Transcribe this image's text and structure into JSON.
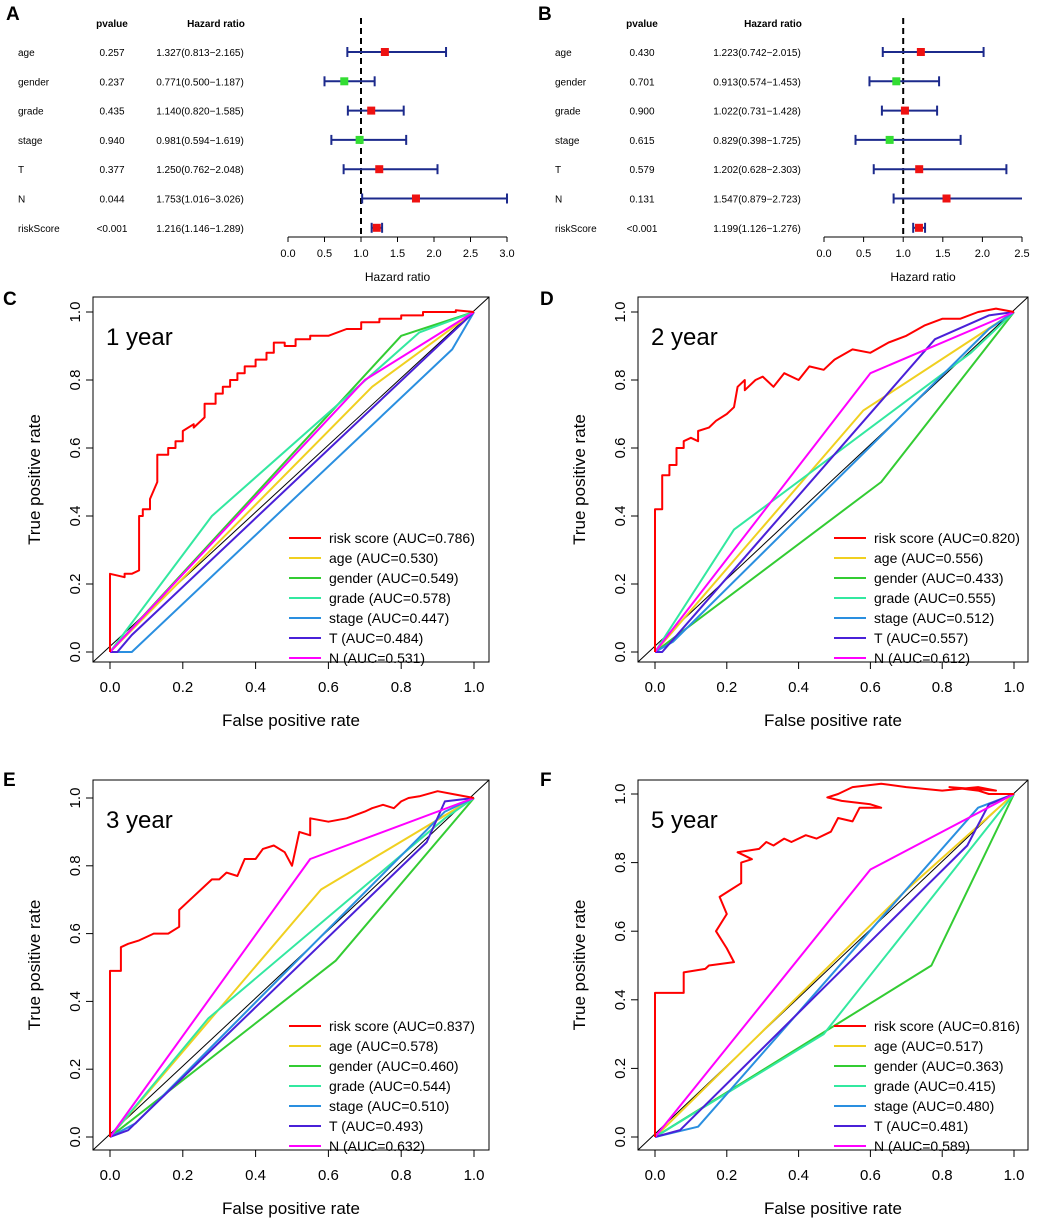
{
  "chart_data": [
    {
      "type": "forest",
      "panel": "A",
      "headers": {
        "pvalue": "pvalue",
        "hr": "Hazard ratio"
      },
      "xlabel": "Hazard ratio",
      "xlim": [
        0,
        3
      ],
      "xticks": [
        "0.0",
        "0.5",
        "1.0",
        "1.5",
        "2.0",
        "2.5",
        "3.0"
      ],
      "reference": 1,
      "rows": [
        {
          "name": "age",
          "pvalue": "0.257",
          "hr_text": "1.327(0.813−2.165)",
          "hr": 1.327,
          "lo": 0.813,
          "hi": 2.165
        },
        {
          "name": "gender",
          "pvalue": "0.237",
          "hr_text": "0.771(0.500−1.187)",
          "hr": 0.771,
          "lo": 0.5,
          "hi": 1.187
        },
        {
          "name": "grade",
          "pvalue": "0.435",
          "hr_text": "1.140(0.820−1.585)",
          "hr": 1.14,
          "lo": 0.82,
          "hi": 1.585
        },
        {
          "name": "stage",
          "pvalue": "0.940",
          "hr_text": "0.981(0.594−1.619)",
          "hr": 0.981,
          "lo": 0.594,
          "hi": 1.619
        },
        {
          "name": "T",
          "pvalue": "0.377",
          "hr_text": "1.250(0.762−2.048)",
          "hr": 1.25,
          "lo": 0.762,
          "hi": 2.048
        },
        {
          "name": "N",
          "pvalue": "0.044",
          "hr_text": "1.753(1.016−3.026)",
          "hr": 1.753,
          "lo": 1.016,
          "hi": 3.026
        },
        {
          "name": "riskScore",
          "pvalue": "<0.001",
          "hr_text": "1.216(1.146−1.289)",
          "hr": 1.216,
          "lo": 1.146,
          "hi": 1.289
        }
      ]
    },
    {
      "type": "forest",
      "panel": "B",
      "headers": {
        "pvalue": "pvalue",
        "hr": "Hazard ratio"
      },
      "xlabel": "Hazard ratio",
      "xlim": [
        0,
        2.5
      ],
      "xticks": [
        "0.0",
        "0.5",
        "1.0",
        "1.5",
        "2.0",
        "2.5"
      ],
      "reference": 1,
      "rows": [
        {
          "name": "age",
          "pvalue": "0.430",
          "hr_text": "1.223(0.742−2.015)",
          "hr": 1.223,
          "lo": 0.742,
          "hi": 2.015
        },
        {
          "name": "gender",
          "pvalue": "0.701",
          "hr_text": "0.913(0.574−1.453)",
          "hr": 0.913,
          "lo": 0.574,
          "hi": 1.453
        },
        {
          "name": "grade",
          "pvalue": "0.900",
          "hr_text": "1.022(0.731−1.428)",
          "hr": 1.022,
          "lo": 0.731,
          "hi": 1.428
        },
        {
          "name": "stage",
          "pvalue": "0.615",
          "hr_text": "0.829(0.398−1.725)",
          "hr": 0.829,
          "lo": 0.398,
          "hi": 1.725
        },
        {
          "name": "T",
          "pvalue": "0.579",
          "hr_text": "1.202(0.628−2.303)",
          "hr": 1.202,
          "lo": 0.628,
          "hi": 2.303
        },
        {
          "name": "N",
          "pvalue": "0.131",
          "hr_text": "1.547(0.879−2.723)",
          "hr": 1.547,
          "lo": 0.879,
          "hi": 2.723
        },
        {
          "name": "riskScore",
          "pvalue": "<0.001",
          "hr_text": "1.199(1.126−1.276)",
          "hr": 1.199,
          "lo": 1.126,
          "hi": 1.276
        }
      ]
    },
    {
      "type": "line",
      "panel": "C",
      "title": "1 year",
      "xlabel": "False positive rate",
      "ylabel": "True positive rate",
      "xlim": [
        0,
        1
      ],
      "ylim": [
        0,
        1
      ],
      "ticks": [
        "0.0",
        "0.2",
        "0.4",
        "0.6",
        "0.8",
        "1.0"
      ],
      "series": [
        {
          "name": "risk score (AUC=0.786)",
          "color": "#ff0000",
          "x": [
            0,
            0,
            0.04,
            0.04,
            0.06,
            0.08,
            0.08,
            0.09,
            0.09,
            0.11,
            0.11,
            0.13,
            0.13,
            0.16,
            0.16,
            0.18,
            0.18,
            0.2,
            0.2,
            0.23,
            0.23,
            0.26,
            0.26,
            0.29,
            0.29,
            0.31,
            0.31,
            0.33,
            0.33,
            0.35,
            0.35,
            0.37,
            0.37,
            0.4,
            0.4,
            0.43,
            0.43,
            0.45,
            0.45,
            0.48,
            0.48,
            0.51,
            0.51,
            0.55,
            0.55,
            0.6,
            0.65,
            0.69,
            0.69,
            0.74,
            0.74,
            0.8,
            0.8,
            0.86,
            0.86,
            0.95,
            0.95,
            1
          ],
          "y": [
            0,
            0.23,
            0.22,
            0.23,
            0.23,
            0.24,
            0.4,
            0.4,
            0.42,
            0.42,
            0.45,
            0.5,
            0.58,
            0.58,
            0.6,
            0.6,
            0.62,
            0.62,
            0.65,
            0.67,
            0.66,
            0.69,
            0.73,
            0.73,
            0.76,
            0.76,
            0.78,
            0.78,
            0.8,
            0.8,
            0.82,
            0.82,
            0.84,
            0.84,
            0.86,
            0.86,
            0.88,
            0.88,
            0.91,
            0.91,
            0.9,
            0.9,
            0.92,
            0.92,
            0.93,
            0.93,
            0.95,
            0.95,
            0.97,
            0.97,
            0.98,
            0.98,
            0.99,
            0.99,
            1,
            1,
            1.005,
            1
          ]
        },
        {
          "name": "age (AUC=0.530)",
          "color": "#f0d020",
          "x": [
            0,
            0.72,
            1
          ],
          "y": [
            0,
            0.78,
            1
          ]
        },
        {
          "name": "gender (AUC=0.549)",
          "color": "#33cc33",
          "x": [
            0,
            0.8,
            1
          ],
          "y": [
            0,
            0.93,
            1
          ]
        },
        {
          "name": "grade (AUC=0.578)",
          "color": "#33e8a0",
          "x": [
            0,
            0.28,
            0.85,
            1
          ],
          "y": [
            0,
            0.4,
            0.94,
            1
          ]
        },
        {
          "name": "stage (AUC=0.447)",
          "color": "#2a8fe0",
          "x": [
            0,
            0.06,
            0.94,
            1
          ],
          "y": [
            0,
            0,
            0.89,
            1
          ]
        },
        {
          "name": "T (AUC=0.484)",
          "color": "#4a20d8",
          "x": [
            0,
            0.02,
            0.06,
            1
          ],
          "y": [
            0,
            0,
            0.05,
            1
          ]
        },
        {
          "name": "N (AUC=0.531)",
          "color": "#ff00ff",
          "x": [
            0,
            0.7,
            1
          ],
          "y": [
            0,
            0.8,
            1
          ]
        }
      ]
    },
    {
      "type": "line",
      "panel": "D",
      "title": "2 year",
      "xlabel": "False positive rate",
      "ylabel": "True positive rate",
      "xlim": [
        0,
        1
      ],
      "ylim": [
        0,
        1
      ],
      "ticks": [
        "0.0",
        "0.2",
        "0.4",
        "0.6",
        "0.8",
        "1.0"
      ],
      "series": [
        {
          "name": "risk score (AUC=0.820)",
          "color": "#ff0000",
          "x": [
            0,
            0,
            0.02,
            0.02,
            0.04,
            0.04,
            0.06,
            0.06,
            0.08,
            0.08,
            0.1,
            0.12,
            0.12,
            0.15,
            0.17,
            0.2,
            0.22,
            0.23,
            0.25,
            0.25,
            0.28,
            0.3,
            0.33,
            0.36,
            0.4,
            0.43,
            0.47,
            0.5,
            0.55,
            0.6,
            0.65,
            0.7,
            0.75,
            0.8,
            0.85,
            0.9,
            0.95,
            1
          ],
          "y": [
            0,
            0.42,
            0.42,
            0.52,
            0.52,
            0.55,
            0.55,
            0.6,
            0.6,
            0.62,
            0.63,
            0.62,
            0.65,
            0.66,
            0.68,
            0.7,
            0.72,
            0.78,
            0.8,
            0.77,
            0.8,
            0.81,
            0.78,
            0.82,
            0.8,
            0.84,
            0.83,
            0.86,
            0.89,
            0.88,
            0.91,
            0.93,
            0.96,
            0.98,
            0.98,
            1,
            1.01,
            1
          ]
        },
        {
          "name": "age (AUC=0.556)",
          "color": "#f0d020",
          "x": [
            0,
            0.58,
            1
          ],
          "y": [
            0,
            0.71,
            1
          ]
        },
        {
          "name": "gender (AUC=0.433)",
          "color": "#33cc33",
          "x": [
            0,
            0.63,
            1
          ],
          "y": [
            0,
            0.5,
            1
          ]
        },
        {
          "name": "grade (AUC=0.555)",
          "color": "#33e8a0",
          "x": [
            0,
            0.22,
            0.88,
            1
          ],
          "y": [
            0,
            0.36,
            0.88,
            1
          ]
        },
        {
          "name": "stage (AUC=0.512)",
          "color": "#2a8fe0",
          "x": [
            0,
            0.05,
            0.93,
            1
          ],
          "y": [
            0,
            0.03,
            0.95,
            1
          ]
        },
        {
          "name": "T (AUC=0.557)",
          "color": "#4a20d8",
          "x": [
            0,
            0.02,
            0.78,
            0.93,
            1
          ],
          "y": [
            0,
            0,
            0.92,
            0.99,
            1
          ]
        },
        {
          "name": "N (AUC=0.612)",
          "color": "#ff00ff",
          "x": [
            0,
            0.6,
            1
          ],
          "y": [
            0,
            0.82,
            1
          ]
        }
      ]
    },
    {
      "type": "line",
      "panel": "E",
      "title": "3 year",
      "xlabel": "False positive rate",
      "ylabel": "True positive rate",
      "xlim": [
        0,
        1
      ],
      "ylim": [
        0,
        1
      ],
      "ticks": [
        "0.0",
        "0.2",
        "0.4",
        "0.6",
        "0.8",
        "1.0"
      ],
      "series": [
        {
          "name": "risk score (AUC=0.837)",
          "color": "#ff0000",
          "x": [
            0,
            0,
            0.03,
            0.03,
            0.05,
            0.08,
            0.12,
            0.16,
            0.19,
            0.19,
            0.22,
            0.28,
            0.3,
            0.32,
            0.35,
            0.37,
            0.4,
            0.42,
            0.45,
            0.48,
            0.5,
            0.52,
            0.55,
            0.55,
            0.6,
            0.65,
            0.7,
            0.72,
            0.75,
            0.78,
            0.8,
            0.82,
            0.85,
            0.9,
            0.95,
            1
          ],
          "y": [
            0,
            0.49,
            0.49,
            0.56,
            0.57,
            0.58,
            0.6,
            0.6,
            0.62,
            0.67,
            0.7,
            0.76,
            0.76,
            0.78,
            0.77,
            0.82,
            0.82,
            0.85,
            0.86,
            0.84,
            0.8,
            0.9,
            0.89,
            0.94,
            0.93,
            0.94,
            0.96,
            0.97,
            0.98,
            0.97,
            0.99,
            1,
            1.005,
            1.02,
            1.01,
            1
          ]
        },
        {
          "name": "age (AUC=0.578)",
          "color": "#f0d020",
          "x": [
            0,
            0.58,
            1
          ],
          "y": [
            0,
            0.73,
            1
          ]
        },
        {
          "name": "gender (AUC=0.460)",
          "color": "#33cc33",
          "x": [
            0,
            0.62,
            1
          ],
          "y": [
            0,
            0.52,
            1
          ]
        },
        {
          "name": "grade (AUC=0.544)",
          "color": "#33e8a0",
          "x": [
            0,
            0.27,
            0.92,
            1
          ],
          "y": [
            0,
            0.35,
            0.94,
            1
          ]
        },
        {
          "name": "stage (AUC=0.510)",
          "color": "#2a8fe0",
          "x": [
            0,
            0.07,
            0.92,
            1
          ],
          "y": [
            0,
            0.04,
            0.96,
            1
          ]
        },
        {
          "name": "T (AUC=0.493)",
          "color": "#4a20d8",
          "x": [
            0,
            0.05,
            0.87,
            0.92,
            1
          ],
          "y": [
            0,
            0.02,
            0.87,
            0.99,
            1
          ]
        },
        {
          "name": "N (AUC=0.632)",
          "color": "#ff00ff",
          "x": [
            0,
            0.55,
            1
          ],
          "y": [
            0,
            0.82,
            1
          ]
        }
      ]
    },
    {
      "type": "line",
      "panel": "F",
      "title": "5 year",
      "xlabel": "False positive rate",
      "ylabel": "True positive rate",
      "xlim": [
        0,
        1
      ],
      "ylim": [
        0,
        1
      ],
      "ticks": [
        "0.0",
        "0.2",
        "0.4",
        "0.6",
        "0.8",
        "1.0"
      ],
      "series": [
        {
          "name": "risk score (AUC=0.816)",
          "color": "#ff0000",
          "x": [
            0,
            0,
            0.08,
            0.08,
            0.14,
            0.15,
            0.22,
            0.2,
            0.17,
            0.2,
            0.18,
            0.21,
            0.24,
            0.24,
            0.27,
            0.25,
            0.23,
            0.29,
            0.31,
            0.33,
            0.36,
            0.38,
            0.42,
            0.45,
            0.49,
            0.51,
            0.55,
            0.57,
            0.63,
            0.6,
            0.52,
            0.48,
            0.51,
            0.55,
            0.63,
            0.7,
            0.8,
            0.9,
            0.95,
            0.82,
            0.9,
            0.93,
            1
          ],
          "y": [
            0,
            0.42,
            0.42,
            0.48,
            0.49,
            0.5,
            0.51,
            0.55,
            0.6,
            0.65,
            0.7,
            0.72,
            0.74,
            0.8,
            0.81,
            0.82,
            0.83,
            0.84,
            0.86,
            0.85,
            0.87,
            0.86,
            0.88,
            0.87,
            0.89,
            0.93,
            0.92,
            0.96,
            0.96,
            0.97,
            0.98,
            0.99,
            1,
            1.02,
            1.03,
            1.02,
            1.01,
            1.02,
            1.01,
            1.02,
            1.01,
            1,
            1
          ]
        },
        {
          "name": "age (AUC=0.517)",
          "color": "#f0d020",
          "x": [
            0,
            0.7,
            1
          ],
          "y": [
            0,
            0.72,
            1
          ]
        },
        {
          "name": "gender (AUC=0.363)",
          "color": "#33cc33",
          "x": [
            0,
            0.77,
            1
          ],
          "y": [
            0,
            0.5,
            1
          ]
        },
        {
          "name": "grade (AUC=0.415)",
          "color": "#33e8a0",
          "x": [
            0,
            0.47,
            1
          ],
          "y": [
            0,
            0.3,
            1
          ]
        },
        {
          "name": "stage (AUC=0.480)",
          "color": "#2a8fe0",
          "x": [
            0,
            0.12,
            0.9,
            1
          ],
          "y": [
            0,
            0.03,
            0.96,
            1
          ]
        },
        {
          "name": "T (AUC=0.481)",
          "color": "#4a20d8",
          "x": [
            0,
            0.07,
            0.87,
            0.93,
            1
          ],
          "y": [
            0,
            0.02,
            0.85,
            0.97,
            1
          ]
        },
        {
          "name": "N (AUC=0.589)",
          "color": "#ff00ff",
          "x": [
            0,
            0.6,
            1
          ],
          "y": [
            0,
            0.78,
            1
          ]
        }
      ]
    }
  ]
}
